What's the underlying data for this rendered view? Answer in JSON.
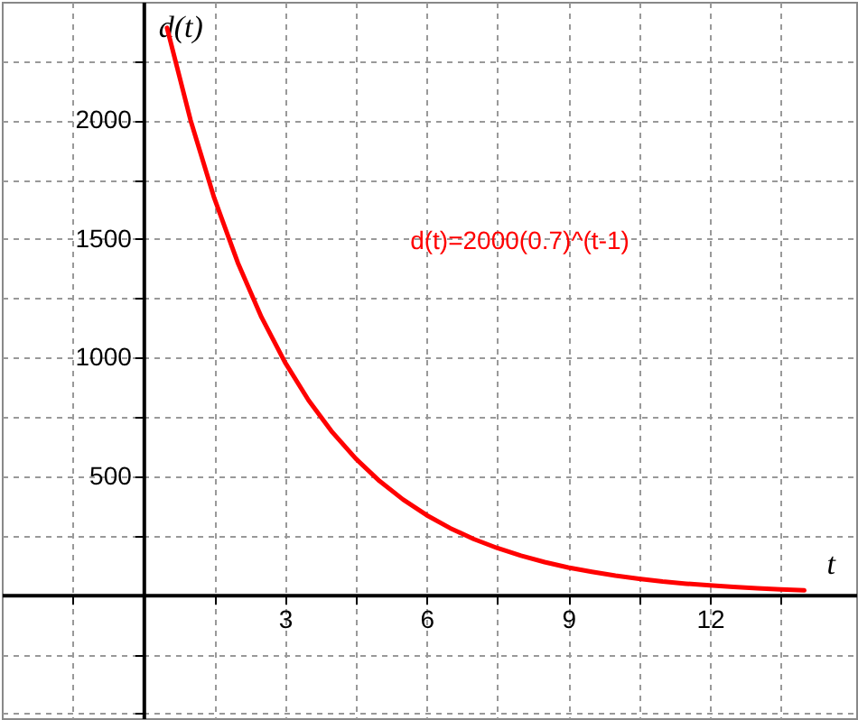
{
  "chart_data": {
    "type": "line",
    "xlabel": "t",
    "ylabel": "d(t)",
    "x": [
      0.5,
      1,
      1.5,
      2,
      2.5,
      3,
      3.5,
      4,
      4.5,
      5,
      5.5,
      6,
      6.5,
      7,
      7.5,
      8,
      8.5,
      9,
      9.5,
      10,
      10.5,
      11,
      11.5,
      12,
      12.5,
      13,
      13.5,
      14
    ],
    "series": [
      {
        "name": "d(t)=2000(0.7)^(t-1)",
        "color": "#ff0000",
        "values": [
          2390,
          2000,
          1673,
          1400,
          1171,
          980,
          820,
          686,
          574,
          480,
          402,
          336,
          281,
          235,
          197,
          165,
          138,
          115,
          97,
          81,
          68,
          56,
          47,
          40,
          33,
          28,
          23,
          19
        ]
      }
    ],
    "xlim": [
      -3,
      15.1
    ],
    "ylim": [
      -520,
      2500
    ],
    "xticks": [
      {
        "value": -1.5,
        "label": null
      },
      {
        "value": 1.5,
        "label": null
      },
      3,
      {
        "value": 4.5,
        "label": null
      },
      6,
      {
        "value": 7.5,
        "label": null
      },
      9,
      {
        "value": 10.5,
        "label": null
      },
      12,
      {
        "value": 13.5,
        "label": null
      }
    ],
    "yticks": [
      {
        "value": -500,
        "label": null
      },
      {
        "value": -250,
        "label": null
      },
      {
        "value": 250,
        "label": null
      },
      500,
      {
        "value": 750,
        "label": null
      },
      1000,
      {
        "value": 1250,
        "label": null
      },
      1500,
      {
        "value": 1750,
        "label": null
      },
      2000,
      {
        "value": 2250,
        "label": null
      }
    ],
    "grid": true,
    "marker": "none",
    "line_style": "solid"
  }
}
